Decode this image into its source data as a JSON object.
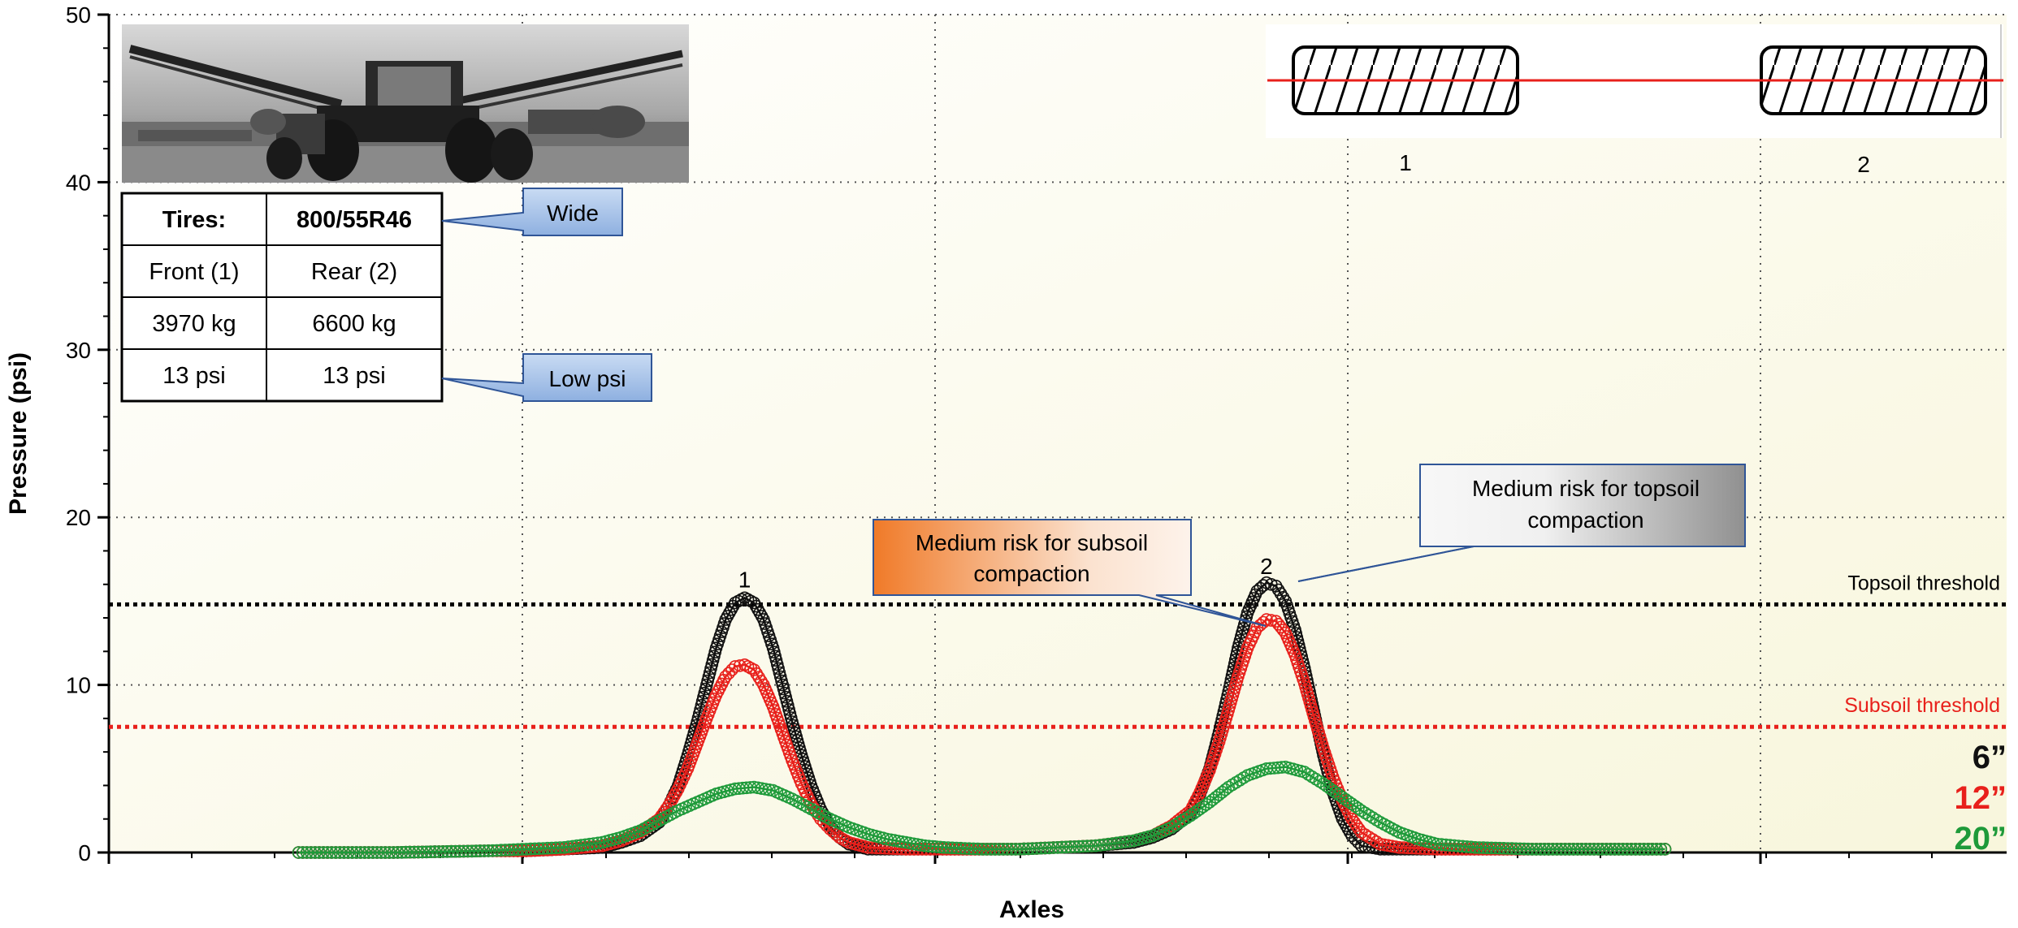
{
  "chart_data": {
    "type": "scatter",
    "title": "",
    "xlabel": "Axles",
    "ylabel": "Pressure (psi)",
    "ylim": [
      0,
      50
    ],
    "yticks": [
      0,
      10,
      20,
      30,
      40,
      50
    ],
    "xlim": [
      0,
      100
    ],
    "grid": true,
    "series": [
      {
        "name": "6”",
        "color": "#111111",
        "points": [
          [
            10,
            0.0
          ],
          [
            15,
            0.0
          ],
          [
            20,
            0.1
          ],
          [
            22,
            0.1
          ],
          [
            24,
            0.2
          ],
          [
            26,
            0.3
          ],
          [
            27,
            0.6
          ],
          [
            28,
            1.0
          ],
          [
            29,
            1.8
          ],
          [
            29.5,
            2.8
          ],
          [
            30,
            4.0
          ],
          [
            30.5,
            5.8
          ],
          [
            31,
            7.8
          ],
          [
            31.5,
            10.0
          ],
          [
            32,
            12.2
          ],
          [
            32.5,
            13.9
          ],
          [
            33,
            14.9
          ],
          [
            33.5,
            15.2
          ],
          [
            34,
            14.9
          ],
          [
            34.5,
            13.9
          ],
          [
            35,
            12.2
          ],
          [
            35.5,
            10.0
          ],
          [
            36,
            7.8
          ],
          [
            36.5,
            5.8
          ],
          [
            37,
            4.0
          ],
          [
            37.5,
            2.6
          ],
          [
            38,
            1.6
          ],
          [
            38.5,
            0.9
          ],
          [
            39,
            0.5
          ],
          [
            40,
            0.2
          ],
          [
            42,
            0.2
          ],
          [
            45,
            0.2
          ],
          [
            48,
            0.2
          ],
          [
            50,
            0.3
          ],
          [
            52,
            0.4
          ],
          [
            54,
            0.6
          ],
          [
            55,
            0.9
          ],
          [
            56,
            1.4
          ],
          [
            57,
            2.3
          ],
          [
            57.5,
            3.5
          ],
          [
            58,
            5.0
          ],
          [
            58.5,
            7.2
          ],
          [
            59,
            9.6
          ],
          [
            59.5,
            12.2
          ],
          [
            60,
            14.3
          ],
          [
            60.5,
            15.6
          ],
          [
            61,
            16.1
          ],
          [
            61.5,
            15.9
          ],
          [
            62,
            15.0
          ],
          [
            62.5,
            13.3
          ],
          [
            63,
            11.0
          ],
          [
            63.5,
            8.4
          ],
          [
            64,
            5.8
          ],
          [
            64.5,
            3.6
          ],
          [
            65,
            2.0
          ],
          [
            65.5,
            1.0
          ],
          [
            66,
            0.4
          ],
          [
            67,
            0.2
          ],
          [
            70,
            0.2
          ],
          [
            75,
            0.2
          ],
          [
            80,
            0.2
          ],
          [
            82,
            0.2
          ]
        ]
      },
      {
        "name": "12”",
        "color": "#e8201b",
        "points": [
          [
            10,
            0.0
          ],
          [
            15,
            0.0
          ],
          [
            20,
            0.1
          ],
          [
            22,
            0.1
          ],
          [
            24,
            0.2
          ],
          [
            26,
            0.4
          ],
          [
            27,
            0.7
          ],
          [
            28,
            1.2
          ],
          [
            29,
            2.0
          ],
          [
            29.5,
            2.8
          ],
          [
            30,
            3.8
          ],
          [
            30.5,
            5.0
          ],
          [
            31,
            6.5
          ],
          [
            31.5,
            8.0
          ],
          [
            32,
            9.4
          ],
          [
            32.5,
            10.5
          ],
          [
            33,
            11.1
          ],
          [
            33.5,
            11.2
          ],
          [
            34,
            10.9
          ],
          [
            34.5,
            10.0
          ],
          [
            35,
            8.7
          ],
          [
            35.5,
            7.1
          ],
          [
            36,
            5.5
          ],
          [
            36.5,
            4.1
          ],
          [
            37,
            2.9
          ],
          [
            37.5,
            2.0
          ],
          [
            38,
            1.4
          ],
          [
            38.5,
            0.9
          ],
          [
            39,
            0.6
          ],
          [
            40,
            0.3
          ],
          [
            42,
            0.2
          ],
          [
            45,
            0.2
          ],
          [
            48,
            0.2
          ],
          [
            50,
            0.3
          ],
          [
            52,
            0.4
          ],
          [
            54,
            0.7
          ],
          [
            55,
            1.0
          ],
          [
            56,
            1.6
          ],
          [
            57,
            2.5
          ],
          [
            57.5,
            3.6
          ],
          [
            58,
            4.9
          ],
          [
            58.5,
            6.6
          ],
          [
            59,
            8.5
          ],
          [
            59.5,
            10.5
          ],
          [
            60,
            12.2
          ],
          [
            60.5,
            13.4
          ],
          [
            61,
            13.9
          ],
          [
            61.5,
            13.8
          ],
          [
            62,
            13.1
          ],
          [
            62.5,
            11.8
          ],
          [
            63,
            10.1
          ],
          [
            63.5,
            8.1
          ],
          [
            64,
            6.2
          ],
          [
            64.5,
            4.5
          ],
          [
            65,
            3.1
          ],
          [
            65.5,
            2.0
          ],
          [
            66,
            1.2
          ],
          [
            67,
            0.5
          ],
          [
            68,
            0.3
          ],
          [
            70,
            0.2
          ],
          [
            75,
            0.2
          ],
          [
            80,
            0.2
          ],
          [
            82,
            0.2
          ]
        ]
      },
      {
        "name": "20”",
        "color": "#1e9a3a",
        "points": [
          [
            10,
            0.0
          ],
          [
            15,
            0.0
          ],
          [
            20,
            0.1
          ],
          [
            22,
            0.2
          ],
          [
            24,
            0.3
          ],
          [
            26,
            0.6
          ],
          [
            27,
            0.9
          ],
          [
            28,
            1.3
          ],
          [
            29,
            1.9
          ],
          [
            30,
            2.5
          ],
          [
            31,
            3.0
          ],
          [
            32,
            3.5
          ],
          [
            33,
            3.8
          ],
          [
            34,
            3.9
          ],
          [
            35,
            3.7
          ],
          [
            36,
            3.2
          ],
          [
            37,
            2.6
          ],
          [
            38,
            2.0
          ],
          [
            39,
            1.5
          ],
          [
            40,
            1.1
          ],
          [
            41,
            0.8
          ],
          [
            42,
            0.6
          ],
          [
            43,
            0.4
          ],
          [
            44,
            0.3
          ],
          [
            46,
            0.2
          ],
          [
            48,
            0.2
          ],
          [
            50,
            0.3
          ],
          [
            52,
            0.4
          ],
          [
            54,
            0.7
          ],
          [
            55,
            1.0
          ],
          [
            56,
            1.5
          ],
          [
            57,
            2.2
          ],
          [
            58,
            3.0
          ],
          [
            59,
            3.9
          ],
          [
            60,
            4.6
          ],
          [
            61,
            5.0
          ],
          [
            62,
            5.1
          ],
          [
            63,
            4.8
          ],
          [
            64,
            4.1
          ],
          [
            65,
            3.3
          ],
          [
            66,
            2.5
          ],
          [
            67,
            1.8
          ],
          [
            68,
            1.2
          ],
          [
            69,
            0.8
          ],
          [
            70,
            0.5
          ],
          [
            72,
            0.3
          ],
          [
            75,
            0.2
          ],
          [
            80,
            0.2
          ],
          [
            82,
            0.2
          ]
        ]
      }
    ],
    "axle_labels": [
      {
        "label": "1",
        "x": 33.5,
        "y": 16.2
      },
      {
        "label": "2",
        "x": 61.0,
        "y": 17.0
      }
    ],
    "thresholds": [
      {
        "name": "Topsoil threshold",
        "y": 14.8,
        "color": "#000000"
      },
      {
        "name": "Subsoil threshold",
        "y": 7.5,
        "color": "#e8201b"
      }
    ],
    "legend": {
      "placement": "bottom-right",
      "entries": [
        {
          "label": "6”",
          "color": "#111111"
        },
        {
          "label": "12”",
          "color": "#e8201b"
        },
        {
          "label": "20”",
          "color": "#1e9a3a"
        }
      ]
    },
    "annotations": {
      "wide_callout": "Wide",
      "low_psi_callout": "Low psi",
      "subsoil_risk_callout": "Medium risk for subsoil compaction",
      "topsoil_risk_callout": "Medium risk for topsoil compaction"
    },
    "tire_table": {
      "rows": [
        [
          "Tires:",
          "800/55R46"
        ],
        [
          "Front (1)",
          "Rear (2)"
        ],
        [
          "3970 kg",
          "6600 kg"
        ],
        [
          "13 psi",
          "13 psi"
        ]
      ]
    },
    "tire_diagram": {
      "labels": [
        "1",
        "2"
      ]
    }
  }
}
